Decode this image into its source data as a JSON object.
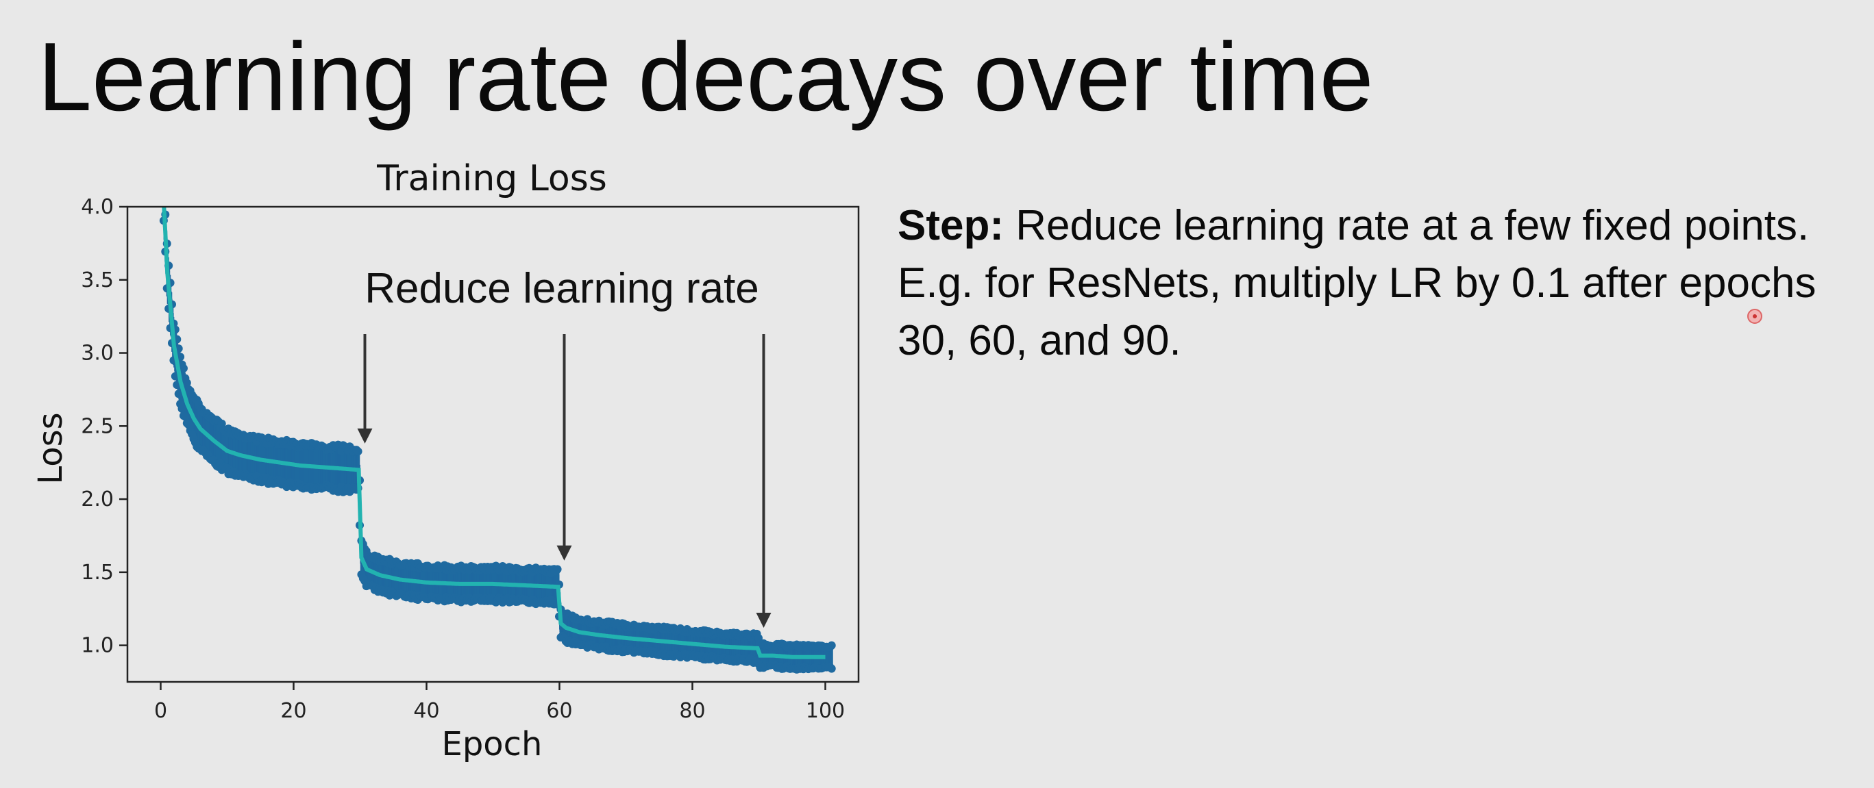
{
  "slide": {
    "title": "Learning rate decays over time",
    "step_label": "Step:",
    "step_text": " Reduce learning rate at a few fixed points. E.g. for ResNets, multiply LR by 0.1 after epochs 30, 60, and 90."
  },
  "chart_data": {
    "type": "line",
    "title": "Training Loss",
    "xlabel": "Epoch",
    "ylabel": "Loss",
    "xlim": [
      -5,
      105
    ],
    "ylim": [
      0.75,
      4.0
    ],
    "xticks": [
      0,
      20,
      40,
      60,
      80,
      100
    ],
    "yticks": [
      1.0,
      1.5,
      2.0,
      2.5,
      3.0,
      3.5,
      4.0
    ],
    "ytick_labels": [
      "1.0",
      "1.5",
      "2.0",
      "2.5",
      "3.0",
      "3.5",
      "4.0"
    ],
    "grid": false,
    "series": [
      {
        "kind": "smoothed",
        "color": "#22b3b0",
        "x": [
          0.5,
          1,
          2,
          3,
          4,
          5,
          6,
          8,
          10,
          12,
          15,
          18,
          21,
          24,
          27,
          29.8,
          30.2,
          31,
          33,
          36,
          40,
          45,
          50,
          55,
          59.8,
          60.2,
          61,
          63,
          66,
          70,
          75,
          80,
          85,
          89.8,
          90.2,
          92,
          95,
          98,
          100
        ],
        "y": [
          4.0,
          3.55,
          3.05,
          2.8,
          2.65,
          2.55,
          2.48,
          2.4,
          2.33,
          2.3,
          2.27,
          2.25,
          2.23,
          2.22,
          2.21,
          2.2,
          1.6,
          1.52,
          1.48,
          1.45,
          1.43,
          1.42,
          1.42,
          1.41,
          1.4,
          1.15,
          1.12,
          1.09,
          1.07,
          1.05,
          1.03,
          1.01,
          0.99,
          0.98,
          0.93,
          0.93,
          0.92,
          0.92,
          0.92
        ]
      },
      {
        "kind": "raw-noise-band",
        "color": "#1f6aa0",
        "spread": [
          {
            "from": 0,
            "to": 30,
            "half_width": 0.13
          },
          {
            "from": 30,
            "to": 60,
            "half_width": 0.1
          },
          {
            "from": 60,
            "to": 90,
            "half_width": 0.08
          },
          {
            "from": 90,
            "to": 101,
            "half_width": 0.07
          }
        ]
      }
    ],
    "annotations": [
      {
        "text": "Reduce learning rate",
        "arrows_at_epoch": [
          30,
          60,
          90
        ]
      }
    ]
  },
  "colors": {
    "background": "#e8e8e8",
    "plot_background": "#e8e8e8",
    "band": "#1f6aa0",
    "line": "#22b3b0",
    "arrow": "#333333"
  }
}
